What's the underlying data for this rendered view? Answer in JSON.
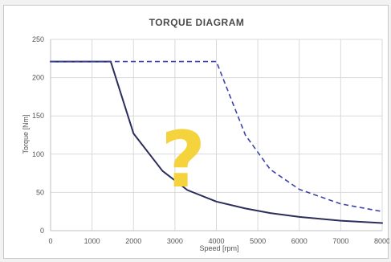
{
  "chart_data": {
    "type": "line",
    "title": "TORQUE DIAGRAM",
    "xlabel": "Speed [rpm]",
    "ylabel": "Torque [Nm]",
    "xlim": [
      0,
      8000
    ],
    "ylim": [
      0,
      250
    ],
    "xticks": [
      0,
      1000,
      2000,
      3000,
      4000,
      5000,
      6000,
      7000,
      8000
    ],
    "yticks": [
      0,
      50,
      100,
      150,
      200,
      250
    ],
    "grid": true,
    "series": [
      {
        "style": "solid",
        "color": "#2b2d5a",
        "x": [
          0,
          1000,
          1450,
          2000,
          2700,
          3300,
          4000,
          4700,
          5300,
          6000,
          7000,
          8000
        ],
        "y": [
          221,
          221,
          221,
          127,
          78,
          53,
          38,
          29,
          23,
          18,
          13,
          10
        ]
      },
      {
        "style": "dashed",
        "color": "#3a44a8",
        "x": [
          0,
          1000,
          2000,
          3000,
          4000,
          4700,
          5300,
          6000,
          7000,
          8000
        ],
        "y": [
          221,
          221,
          221,
          221,
          221,
          125,
          80,
          54,
          35,
          25
        ]
      }
    ],
    "annotation": {
      "text": "?",
      "color": "#f5d33d"
    }
  }
}
